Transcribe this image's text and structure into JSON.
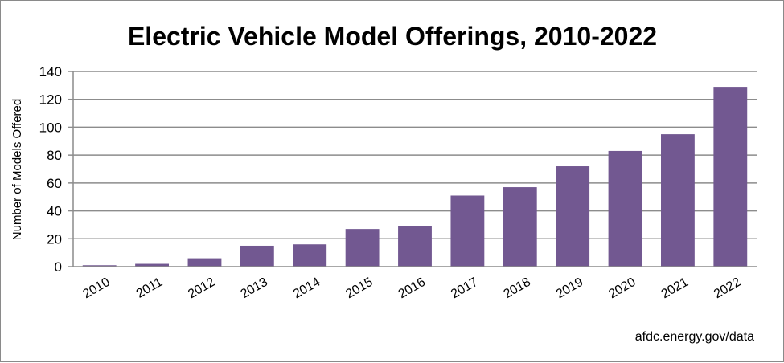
{
  "chart_data": {
    "type": "bar",
    "title": "Electric Vehicle Model Offerings, 2010-2022",
    "xlabel": "",
    "ylabel": "Number of Models Offered",
    "categories": [
      "2010",
      "2011",
      "2012",
      "2013",
      "2014",
      "2015",
      "2016",
      "2017",
      "2018",
      "2019",
      "2020",
      "2021",
      "2022"
    ],
    "values": [
      1,
      2,
      6,
      15,
      16,
      27,
      29,
      51,
      57,
      72,
      83,
      95,
      129
    ],
    "ylim": [
      0,
      140
    ],
    "yticks": [
      0,
      20,
      40,
      60,
      80,
      100,
      120,
      140
    ],
    "grid": true,
    "legend": "none",
    "bar_color": "#725891",
    "source": "afdc.energy.gov/data"
  }
}
